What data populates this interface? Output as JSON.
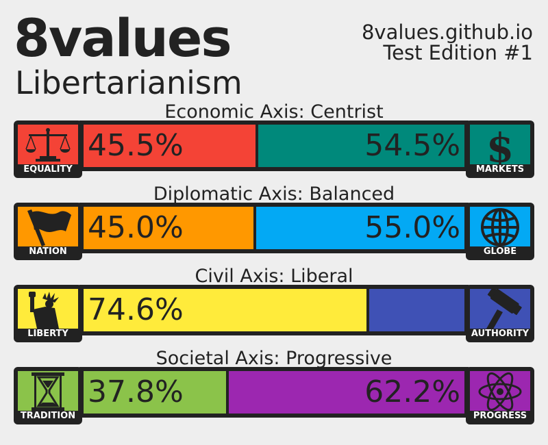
{
  "header": {
    "title": "8values",
    "subtitle": "Libertarianism",
    "site": "8values.github.io",
    "edition": "Test Edition #1"
  },
  "chart_data": {
    "type": "bar",
    "orientation": "horizontal-stacked",
    "unit": "%",
    "axes": [
      {
        "label": "Economic Axis: Centrist",
        "left_name": "EQUALITY",
        "right_name": "MARKETS",
        "left_icon": "scales-icon",
        "right_icon": "dollar-icon",
        "left_value": 45.5,
        "right_value": 54.5,
        "left_text": "45.5%",
        "right_text": "54.5%",
        "left_color": "#f44336",
        "right_color": "#00897b"
      },
      {
        "label": "Diplomatic Axis: Balanced",
        "left_name": "NATION",
        "right_name": "GLOBE",
        "left_icon": "flag-icon",
        "right_icon": "globe-icon",
        "left_value": 45.0,
        "right_value": 55.0,
        "left_text": "45.0%",
        "right_text": "55.0%",
        "left_color": "#ff9800",
        "right_color": "#03a9f4"
      },
      {
        "label": "Civil Axis: Liberal",
        "left_name": "LIBERTY",
        "right_name": "AUTHORITY",
        "left_icon": "statue-of-liberty-icon",
        "right_icon": "gavel-icon",
        "left_value": 74.6,
        "right_value": 25.4,
        "left_text": "74.6%",
        "right_text": "",
        "left_color": "#ffeb3b",
        "right_color": "#3f51b5"
      },
      {
        "label": "Societal Axis: Progressive",
        "left_name": "TRADITION",
        "right_name": "PROGRESS",
        "left_icon": "hourglass-icon",
        "right_icon": "atom-icon",
        "left_value": 37.8,
        "right_value": 62.2,
        "left_text": "37.8%",
        "right_text": "62.2%",
        "left_color": "#8bc34a",
        "right_color": "#9c27b0"
      }
    ]
  }
}
